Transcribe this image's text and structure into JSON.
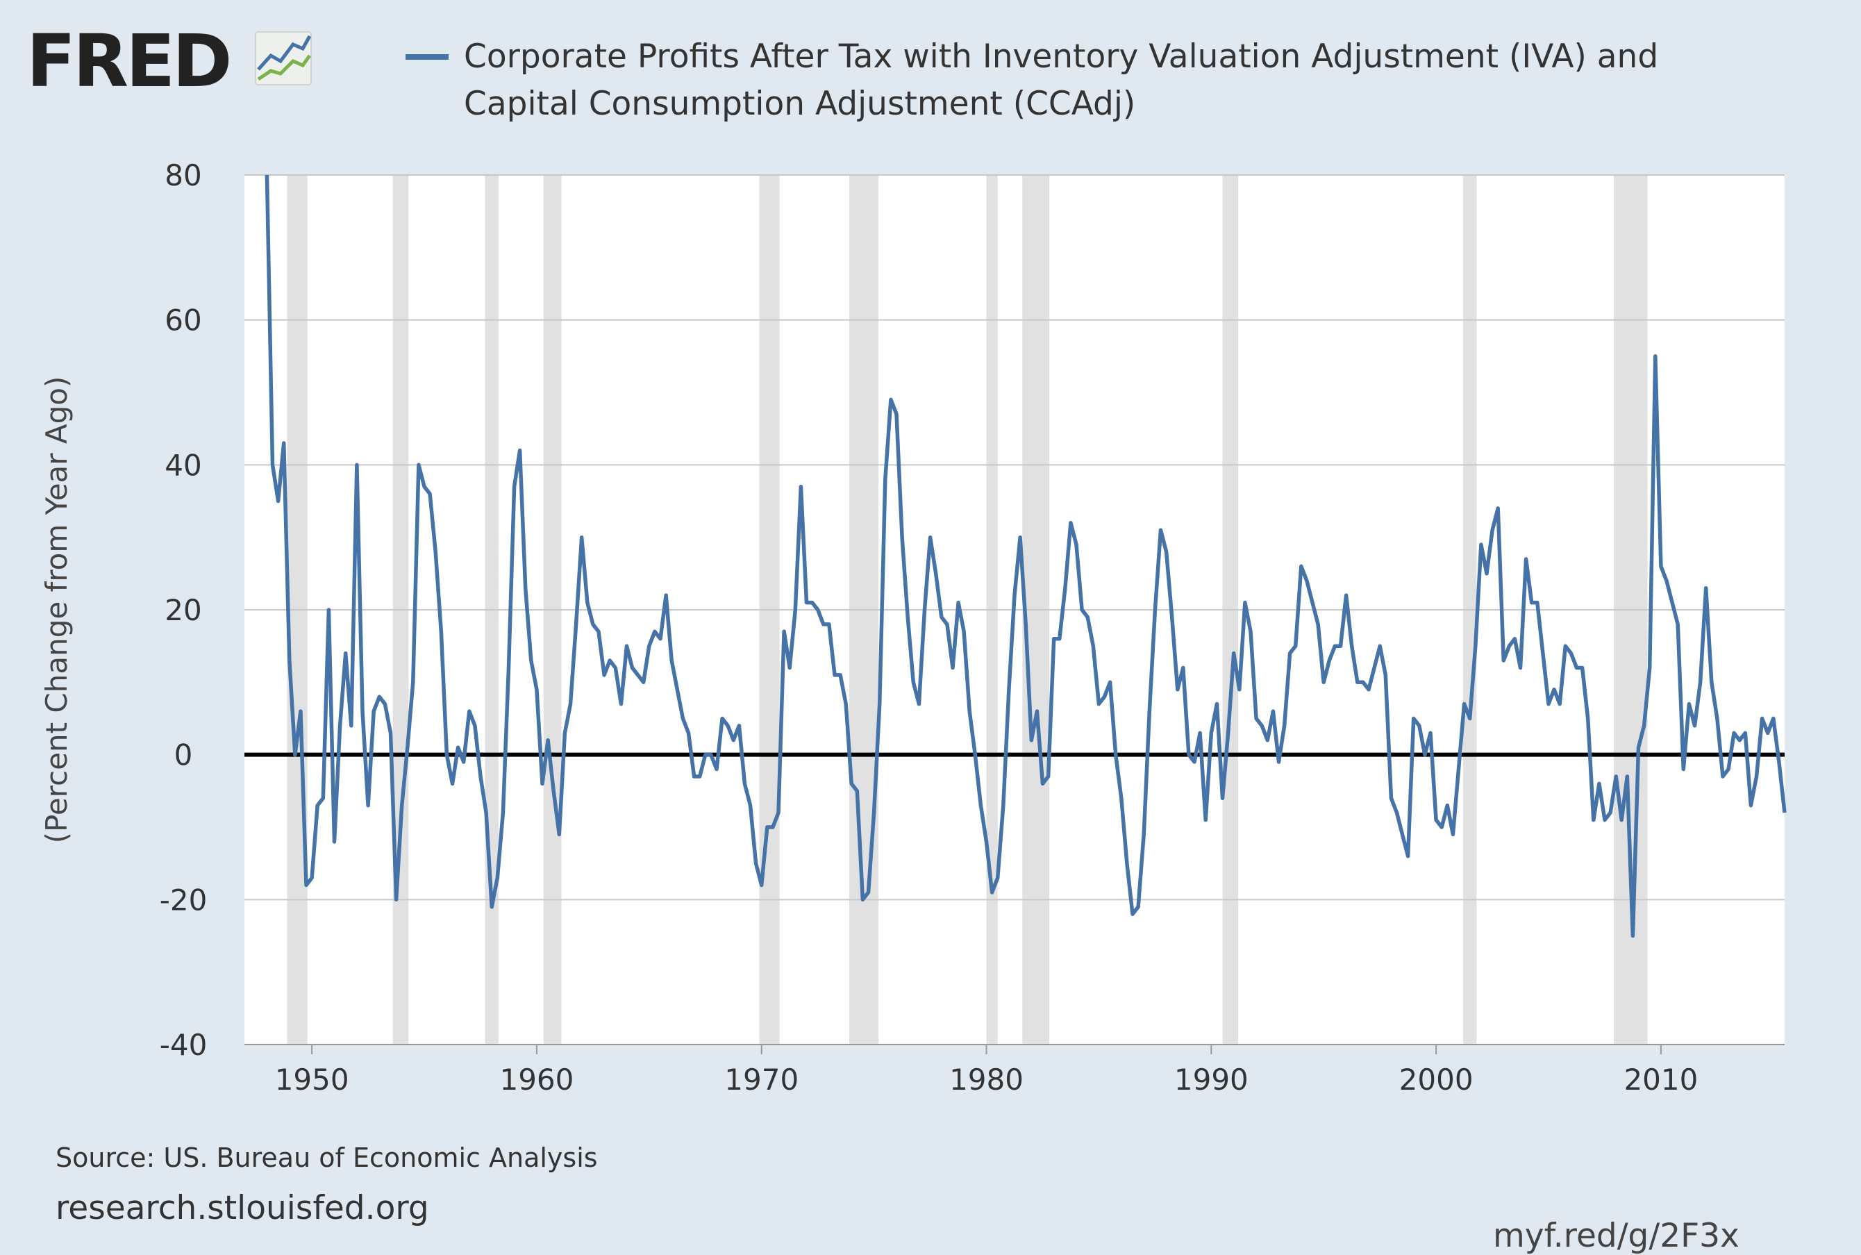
{
  "header": {
    "logo_text": "FRED",
    "series_title": "Corporate Profits After Tax with Inventory Valuation Adjustment (IVA) and Capital Consumption Adjustment (CCAdj)"
  },
  "footer": {
    "source": "Source: US. Bureau of Economic Analysis",
    "site": "research.stlouisfed.org",
    "short_url": "myf.red/g/2F3x"
  },
  "colors": {
    "background": "#e1e9f0",
    "plot_bg": "#ffffff",
    "series": "#4572a7",
    "recession": "#e1e1e1",
    "grid": "#c8c8c8",
    "zero_line": "#000000"
  },
  "chart_data": {
    "type": "line",
    "title": "",
    "xlabel": "",
    "ylabel": "(Percent Change from Year Ago)",
    "ylim": [
      -40,
      80
    ],
    "xlim": [
      1947,
      2015.5
    ],
    "yticks": [
      80,
      60,
      40,
      20,
      0,
      -20,
      -40
    ],
    "xticks": [
      1950,
      1960,
      1970,
      1980,
      1990,
      2000,
      2010
    ],
    "grid": true,
    "recessions": [
      [
        1948.9,
        1949.8
      ],
      [
        1953.6,
        1954.3
      ],
      [
        1957.7,
        1958.3
      ],
      [
        1960.3,
        1961.1
      ],
      [
        1969.9,
        1970.8
      ],
      [
        1973.9,
        1975.2
      ],
      [
        1980.0,
        1980.5
      ],
      [
        1981.6,
        1982.8
      ],
      [
        1990.5,
        1991.2
      ],
      [
        2001.2,
        2001.8
      ],
      [
        2007.9,
        2009.4
      ]
    ],
    "series": [
      {
        "name": "Corporate Profits After Tax with Inventory Valuation Adjustment (IVA) and Capital Consumption Adjustment (CCAdj)",
        "x": [
          1948.0,
          1948.25,
          1948.5,
          1948.75,
          1949.0,
          1949.25,
          1949.5,
          1949.75,
          1950.0,
          1950.25,
          1950.5,
          1950.75,
          1951.0,
          1951.25,
          1951.5,
          1951.75,
          1952.0,
          1952.25,
          1952.5,
          1952.75,
          1953.0,
          1953.25,
          1953.5,
          1953.75,
          1954.0,
          1954.25,
          1954.5,
          1954.75,
          1955.0,
          1955.25,
          1955.5,
          1955.75,
          1956.0,
          1956.25,
          1956.5,
          1956.75,
          1957.0,
          1957.25,
          1957.5,
          1957.75,
          1958.0,
          1958.25,
          1958.5,
          1958.75,
          1959.0,
          1959.25,
          1959.5,
          1959.75,
          1960.0,
          1960.25,
          1960.5,
          1960.75,
          1961.0,
          1961.25,
          1961.5,
          1961.75,
          1962.0,
          1962.25,
          1962.5,
          1962.75,
          1963.0,
          1963.25,
          1963.5,
          1963.75,
          1964.0,
          1964.25,
          1964.5,
          1964.75,
          1965.0,
          1965.25,
          1965.5,
          1965.75,
          1966.0,
          1966.25,
          1966.5,
          1966.75,
          1967.0,
          1967.25,
          1967.5,
          1967.75,
          1968.0,
          1968.25,
          1968.5,
          1968.75,
          1969.0,
          1969.25,
          1969.5,
          1969.75,
          1970.0,
          1970.25,
          1970.5,
          1970.75,
          1971.0,
          1971.25,
          1971.5,
          1971.75,
          1972.0,
          1972.25,
          1972.5,
          1972.75,
          1973.0,
          1973.25,
          1973.5,
          1973.75,
          1974.0,
          1974.25,
          1974.5,
          1974.75,
          1975.0,
          1975.25,
          1975.5,
          1975.75,
          1976.0,
          1976.25,
          1976.5,
          1976.75,
          1977.0,
          1977.25,
          1977.5,
          1977.75,
          1978.0,
          1978.25,
          1978.5,
          1978.75,
          1979.0,
          1979.25,
          1979.5,
          1979.75,
          1980.0,
          1980.25,
          1980.5,
          1980.75,
          1981.0,
          1981.25,
          1981.5,
          1981.75,
          1982.0,
          1982.25,
          1982.5,
          1982.75,
          1983.0,
          1983.25,
          1983.5,
          1983.75,
          1984.0,
          1984.25,
          1984.5,
          1984.75,
          1985.0,
          1985.25,
          1985.5,
          1985.75,
          1986.0,
          1986.25,
          1986.5,
          1986.75,
          1987.0,
          1987.25,
          1987.5,
          1987.75,
          1988.0,
          1988.25,
          1988.5,
          1988.75,
          1989.0,
          1989.25,
          1989.5,
          1989.75,
          1990.0,
          1990.25,
          1990.5,
          1990.75,
          1991.0,
          1991.25,
          1991.5,
          1991.75,
          1992.0,
          1992.25,
          1992.5,
          1992.75,
          1993.0,
          1993.25,
          1993.5,
          1993.75,
          1994.0,
          1994.25,
          1994.5,
          1994.75,
          1995.0,
          1995.25,
          1995.5,
          1995.75,
          1996.0,
          1996.25,
          1996.5,
          1996.75,
          1997.0,
          1997.25,
          1997.5,
          1997.75,
          1998.0,
          1998.25,
          1998.5,
          1998.75,
          1999.0,
          1999.25,
          1999.5,
          1999.75,
          2000.0,
          2000.25,
          2000.5,
          2000.75,
          2001.0,
          2001.25,
          2001.5,
          2001.75,
          2002.0,
          2002.25,
          2002.5,
          2002.75,
          2003.0,
          2003.25,
          2003.5,
          2003.75,
          2004.0,
          2004.25,
          2004.5,
          2004.75,
          2005.0,
          2005.25,
          2005.5,
          2005.75,
          2006.0,
          2006.25,
          2006.5,
          2006.75,
          2007.0,
          2007.25,
          2007.5,
          2007.75,
          2008.0,
          2008.25,
          2008.5,
          2008.75,
          2009.0,
          2009.25,
          2009.5,
          2009.75,
          2010.0,
          2010.25,
          2010.5,
          2010.75,
          2011.0,
          2011.25,
          2011.5,
          2011.75,
          2012.0,
          2012.25,
          2012.5,
          2012.75,
          2013.0,
          2013.25,
          2013.5,
          2013.75,
          2014.0,
          2014.25,
          2014.5,
          2014.75,
          2015.0,
          2015.25,
          2015.5
        ],
        "values": [
          80,
          40,
          35,
          43,
          13,
          0,
          6,
          -18,
          -17,
          -7,
          -6,
          20,
          -12,
          4,
          14,
          4,
          40,
          6,
          -7,
          6,
          8,
          7,
          3,
          -20,
          -7,
          1,
          10,
          40,
          37,
          36,
          28,
          17,
          0,
          -4,
          1,
          -1,
          6,
          4,
          -3,
          -8,
          -21,
          -17,
          -8,
          12,
          37,
          42,
          23,
          13,
          9,
          -4,
          2,
          -5,
          -11,
          3,
          7,
          18,
          30,
          21,
          18,
          17,
          11,
          13,
          12,
          7,
          15,
          12,
          11,
          10,
          15,
          17,
          16,
          22,
          13,
          9,
          5,
          3,
          -3,
          -3,
          0,
          0,
          -2,
          5,
          4,
          2,
          4,
          -4,
          -7,
          -15,
          -18,
          -10,
          -10,
          -8,
          17,
          12,
          20,
          37,
          21,
          21,
          20,
          18,
          18,
          11,
          11,
          7,
          -4,
          -5,
          -20,
          -19,
          -8,
          7,
          38,
          49,
          47,
          30,
          19,
          10,
          7,
          20,
          30,
          25,
          19,
          18,
          12,
          21,
          17,
          6,
          0,
          -7,
          -12,
          -19,
          -17,
          -7,
          9,
          22,
          30,
          18,
          2,
          6,
          -4,
          -3,
          16,
          16,
          23,
          32,
          29,
          20,
          19,
          15,
          7,
          8,
          10,
          0,
          -6,
          -15,
          -22,
          -21,
          -11,
          6,
          20,
          31,
          28,
          19,
          9,
          12,
          0,
          -1,
          3,
          -9,
          3,
          7,
          -6,
          3,
          14,
          9,
          21,
          17,
          5,
          4,
          2,
          6,
          -1,
          4,
          14,
          15,
          26,
          24,
          21,
          18,
          10,
          13,
          15,
          15,
          22,
          15,
          10,
          10,
          9,
          12,
          15,
          11,
          -6,
          -8,
          -11,
          -14,
          5,
          4,
          0,
          3,
          -9,
          -10,
          -7,
          -11,
          -2,
          7,
          5,
          15,
          29,
          25,
          31,
          34,
          13,
          15,
          16,
          12,
          27,
          21,
          21,
          14,
          7,
          9,
          7,
          15,
          14,
          12,
          12,
          5,
          -9,
          -4,
          -9,
          -8,
          -3,
          -9,
          -3,
          -25,
          1,
          4,
          12,
          55,
          26,
          24,
          21,
          18,
          -2,
          7,
          4,
          10,
          23,
          10,
          5,
          -3,
          -2,
          3,
          2,
          3,
          -7,
          -3,
          5,
          3,
          5,
          -1,
          -8
        ]
      }
    ]
  }
}
